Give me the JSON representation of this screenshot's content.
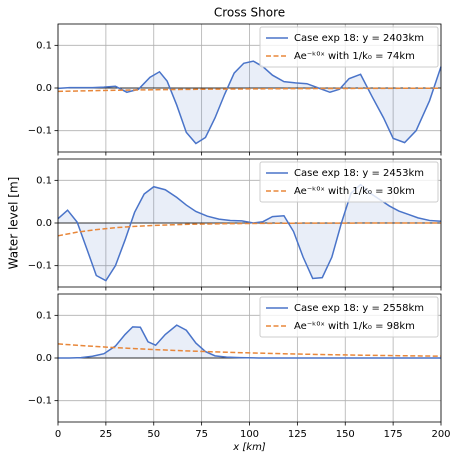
{
  "chart_data": [
    {
      "type": "line",
      "title": "Cross Shore",
      "xlim": [
        0,
        200
      ],
      "ylim": [
        -0.15,
        0.15
      ],
      "yticks": [
        {
          "value": -0.1,
          "label": "−0.1"
        },
        {
          "value": 0,
          "label": "0.0"
        },
        0.1
      ],
      "grid": true,
      "legend": "upper right",
      "series": [
        {
          "name": "Case exp 18: y = 2403km",
          "color": "#4a74c9",
          "fill_to_zero": true,
          "x": [
            0,
            6,
            12,
            18,
            24,
            30,
            36,
            42,
            48,
            53,
            57,
            62,
            67,
            72,
            77,
            82,
            87,
            92,
            97,
            102,
            107,
            112,
            118,
            124,
            130,
            136,
            142,
            147,
            152,
            158,
            164,
            170,
            175,
            181,
            187,
            194,
            200
          ],
          "values": [
            -0.001,
            0.001,
            0.001,
            0.001,
            0.002,
            0.004,
            -0.01,
            -0.003,
            0.025,
            0.038,
            0.016,
            -0.04,
            -0.104,
            -0.13,
            -0.116,
            -0.07,
            -0.015,
            0.035,
            0.058,
            0.063,
            0.05,
            0.03,
            0.015,
            0.012,
            0.01,
            0.0,
            -0.01,
            -0.003,
            0.022,
            0.032,
            -0.02,
            -0.07,
            -0.118,
            -0.128,
            -0.1,
            -0.03,
            0.05
          ]
        },
        {
          "name": "Ae⁻ᵏ⁰ˣ with 1/k₀ = 74km",
          "color": "#e8873a",
          "dashed": true,
          "x": [
            0,
            10,
            20,
            30,
            40,
            50,
            60,
            70,
            80,
            90,
            100,
            110,
            120,
            130,
            140,
            150,
            160,
            170,
            180,
            190,
            200
          ],
          "values": [
            -0.008,
            -0.007,
            -0.0061,
            -0.0053,
            -0.0047,
            -0.0041,
            -0.0036,
            -0.0031,
            -0.0027,
            -0.0024,
            -0.0021,
            -0.0018,
            -0.0016,
            -0.0014,
            -0.0012,
            -0.0011,
            -0.0009,
            -0.0008,
            -0.0007,
            -0.0006,
            -0.0005
          ]
        }
      ]
    },
    {
      "type": "line",
      "ylabel": "Water level [m]",
      "xlim": [
        0,
        200
      ],
      "ylim": [
        -0.15,
        0.15
      ],
      "yticks": [
        {
          "value": -0.1,
          "label": "−0.1"
        },
        {
          "value": 0,
          "label": "0.0"
        },
        0.1
      ],
      "grid": true,
      "legend": "upper right",
      "series": [
        {
          "name": "Case exp 18: y = 2453km",
          "color": "#4a74c9",
          "fill_to_zero": true,
          "x": [
            0,
            5,
            10,
            15,
            20,
            25,
            30,
            35,
            40,
            45,
            50,
            56,
            62,
            67,
            72,
            78,
            84,
            90,
            96,
            102,
            107,
            112,
            118,
            123,
            128,
            133,
            138,
            143,
            148,
            153,
            158,
            163,
            168,
            173,
            178,
            183,
            188,
            194,
            200
          ],
          "values": [
            0.01,
            0.03,
            0.002,
            -0.06,
            -0.123,
            -0.135,
            -0.1,
            -0.04,
            0.025,
            0.068,
            0.085,
            0.078,
            0.06,
            0.042,
            0.027,
            0.016,
            0.009,
            0.006,
            0.005,
            0.0,
            0.003,
            0.015,
            0.017,
            -0.02,
            -0.08,
            -0.13,
            -0.128,
            -0.08,
            0.0,
            0.07,
            0.09,
            0.07,
            0.055,
            0.04,
            0.028,
            0.02,
            0.012,
            0.006,
            0.004
          ]
        },
        {
          "name": "Ae⁻ᵏ⁰ˣ with 1/k₀ = 30km",
          "color": "#e8873a",
          "dashed": true,
          "x": [
            0,
            10,
            20,
            30,
            40,
            50,
            60,
            70,
            80,
            90,
            100,
            110,
            120,
            130,
            140,
            150,
            160,
            170,
            180,
            190,
            200
          ],
          "values": [
            -0.03,
            -0.0215,
            -0.0154,
            -0.011,
            -0.0079,
            -0.0057,
            -0.0041,
            -0.0029,
            -0.0021,
            -0.0015,
            -0.0011,
            -0.0008,
            -0.0005,
            -0.0004,
            -0.0003,
            -0.0002,
            -0.0001,
            -0.0001,
            0,
            0,
            0
          ]
        }
      ]
    },
    {
      "type": "line",
      "xlabel": "x [km]",
      "xlim": [
        0,
        200
      ],
      "ylim": [
        -0.15,
        0.15
      ],
      "xticks": [
        0,
        25,
        50,
        75,
        100,
        125,
        150,
        175,
        200
      ],
      "yticks": [
        {
          "value": -0.1,
          "label": "−0.1"
        },
        {
          "value": 0,
          "label": "0.0"
        },
        0.1
      ],
      "grid": true,
      "legend": "upper right",
      "series": [
        {
          "name": "Case exp 18: y = 2558km",
          "color": "#4a74c9",
          "fill_to_zero": true,
          "x": [
            0,
            6,
            12,
            18,
            24,
            30,
            35,
            39,
            43,
            47,
            51,
            56,
            62,
            67,
            72,
            77,
            82,
            88,
            95,
            105,
            120,
            140,
            170,
            200
          ],
          "values": [
            0,
            0,
            0.001,
            0.004,
            0.01,
            0.028,
            0.055,
            0.073,
            0.072,
            0.038,
            0.03,
            0.055,
            0.077,
            0.065,
            0.035,
            0.015,
            0.005,
            0.002,
            0.001,
            0,
            0,
            0,
            0,
            0
          ]
        },
        {
          "name": "Ae⁻ᵏ⁰ˣ with 1/k₀ = 98km",
          "color": "#e8873a",
          "dashed": true,
          "x": [
            0,
            10,
            20,
            30,
            40,
            50,
            60,
            70,
            80,
            90,
            100,
            110,
            120,
            130,
            140,
            150,
            160,
            170,
            180,
            190,
            200
          ],
          "values": [
            0.033,
            0.0298,
            0.0269,
            0.0243,
            0.022,
            0.0198,
            0.0179,
            0.0162,
            0.0146,
            0.0132,
            0.012,
            0.0108,
            0.0097,
            0.0088,
            0.0079,
            0.0072,
            0.0065,
            0.0059,
            0.0053,
            0.0048,
            0.0043
          ]
        }
      ]
    }
  ]
}
